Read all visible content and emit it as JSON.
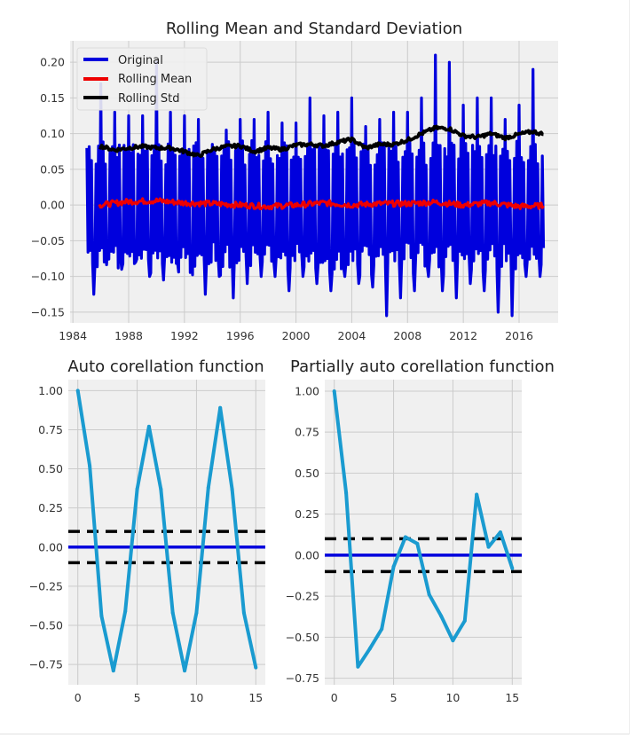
{
  "colors": {
    "original": "#0000dd",
    "rolling_mean": "#ee0000",
    "rolling_std": "#000000",
    "acf_line": "#1a9bd0",
    "zero_line": "#0000dd",
    "conf_line": "#000000",
    "axes_bg": "#f0f0f0",
    "grid": "#cbcbcb"
  },
  "chart_data": [
    {
      "id": "rolling",
      "type": "line",
      "title": "Rolling Mean and Standard Deviation",
      "xlabel": "",
      "ylabel": "",
      "xlim": [
        1983.8,
        2018.8
      ],
      "ylim": [
        -0.165,
        0.23
      ],
      "grid": true,
      "legend": "top-left",
      "xticks": [
        1984,
        1988,
        1992,
        1996,
        2000,
        2004,
        2008,
        2012,
        2016
      ],
      "xtick_labels": [
        "1984",
        "1988",
        "1992",
        "1996",
        "2000",
        "2004",
        "2008",
        "2012",
        "2016"
      ],
      "yticks": [
        -0.15,
        -0.1,
        -0.05,
        0.0,
        0.05,
        0.1,
        0.15,
        0.2
      ],
      "ytick_labels": [
        "−0.15",
        "−0.10",
        "−0.05",
        "0.00",
        "0.05",
        "0.10",
        "0.15",
        "0.20"
      ],
      "x_start": 1985.0,
      "x_end": 2017.75,
      "series": [
        {
          "name": "Original",
          "kind": "monthly_oscillation",
          "annual_highs": [
            0.08,
            0.17,
            0.13,
            0.125,
            0.125,
            0.2,
            0.13,
            0.125,
            0.12,
            0.085,
            0.105,
            0.12,
            0.12,
            0.13,
            0.115,
            0.115,
            0.15,
            0.125,
            0.13,
            0.15,
            0.11,
            0.12,
            0.13,
            0.13,
            0.15,
            0.21,
            0.2,
            0.14,
            0.15,
            0.15,
            0.12,
            0.14,
            0.19,
            0.16
          ],
          "annual_lows": [
            -0.125,
            -0.06,
            -0.09,
            -0.08,
            -0.1,
            -0.105,
            -0.08,
            -0.07,
            -0.125,
            -0.1,
            -0.13,
            -0.11,
            -0.1,
            -0.1,
            -0.12,
            -0.1,
            -0.11,
            -0.12,
            -0.1,
            -0.11,
            -0.115,
            -0.155,
            -0.13,
            -0.12,
            -0.1,
            -0.12,
            -0.13,
            -0.11,
            -0.12,
            -0.15,
            -0.155,
            -0.1,
            -0.1,
            -0.1
          ]
        },
        {
          "name": "Rolling Mean",
          "x": [
            1985.9,
            1988,
            1990,
            1992,
            1994,
            1996,
            1998,
            2000,
            2002,
            2004,
            2006,
            2008,
            2010,
            2012,
            2014,
            2016,
            2017.75
          ],
          "values": [
            0.0,
            0.005,
            0.006,
            0.003,
            0.002,
            0.0,
            -0.002,
            0.0,
            0.003,
            0.0,
            0.002,
            0.002,
            0.004,
            0.0,
            0.003,
            -0.002,
            -0.001
          ]
        },
        {
          "name": "Rolling Std",
          "x": [
            1985.9,
            1987,
            1988,
            1989,
            1990,
            1991,
            1992,
            1993,
            1994,
            1995,
            1996,
            1997,
            1998,
            1999,
            2000,
            2001,
            2002,
            2003,
            2004,
            2005,
            2006,
            2007,
            2008,
            2009,
            2010,
            2011,
            2012,
            2013,
            2014,
            2015,
            2016,
            2017,
            2017.75
          ],
          "values": [
            0.083,
            0.077,
            0.08,
            0.082,
            0.08,
            0.08,
            0.075,
            0.069,
            0.078,
            0.082,
            0.083,
            0.075,
            0.08,
            0.078,
            0.084,
            0.085,
            0.083,
            0.088,
            0.092,
            0.08,
            0.085,
            0.085,
            0.091,
            0.1,
            0.108,
            0.107,
            0.097,
            0.095,
            0.1,
            0.094,
            0.099,
            0.103,
            0.099
          ]
        }
      ]
    },
    {
      "id": "acf",
      "type": "line",
      "title": "Auto corellation function",
      "xlabel": "",
      "ylabel": "",
      "xlim": [
        -0.8,
        15.8
      ],
      "ylim": [
        -0.88,
        1.07
      ],
      "grid": true,
      "xticks": [
        0,
        5,
        10,
        15
      ],
      "xtick_labels": [
        "0",
        "5",
        "10",
        "15"
      ],
      "yticks": [
        -0.75,
        -0.5,
        -0.25,
        0.0,
        0.25,
        0.5,
        0.75,
        1.0
      ],
      "ytick_labels": [
        "−0.75",
        "−0.50",
        "−0.25",
        "0.00",
        "0.25",
        "0.50",
        "0.75",
        "1.00"
      ],
      "x": [
        0,
        1,
        2,
        3,
        4,
        5,
        6,
        7,
        8,
        9,
        10,
        11,
        12,
        13,
        14,
        15
      ],
      "values": [
        1.0,
        0.52,
        -0.44,
        -0.79,
        -0.41,
        0.37,
        0.77,
        0.37,
        -0.42,
        -0.79,
        -0.42,
        0.38,
        0.89,
        0.37,
        -0.42,
        -0.77
      ],
      "conf_upper": 0.1,
      "conf_lower": -0.1
    },
    {
      "id": "pacf",
      "type": "line",
      "title": "Partially auto corellation function",
      "xlabel": "",
      "ylabel": "",
      "xlim": [
        -0.8,
        15.8
      ],
      "ylim": [
        -0.79,
        1.07
      ],
      "grid": true,
      "xticks": [
        0,
        5,
        10,
        15
      ],
      "xtick_labels": [
        "0",
        "5",
        "10",
        "15"
      ],
      "yticks": [
        -0.75,
        -0.5,
        -0.25,
        0.0,
        0.25,
        0.5,
        0.75,
        1.0
      ],
      "ytick_labels": [
        "−0.75",
        "−0.50",
        "−0.25",
        "0.00",
        "0.25",
        "0.50",
        "0.75",
        "1.00"
      ],
      "x": [
        0,
        1,
        2,
        3,
        4,
        5,
        6,
        7,
        8,
        9,
        10,
        11,
        12,
        13,
        14,
        15
      ],
      "values": [
        1.0,
        0.38,
        -0.68,
        -0.57,
        -0.45,
        -0.07,
        0.11,
        0.07,
        -0.24,
        -0.37,
        -0.52,
        -0.4,
        0.37,
        0.05,
        0.14,
        -0.08
      ],
      "conf_upper": 0.1,
      "conf_lower": -0.1
    }
  ]
}
